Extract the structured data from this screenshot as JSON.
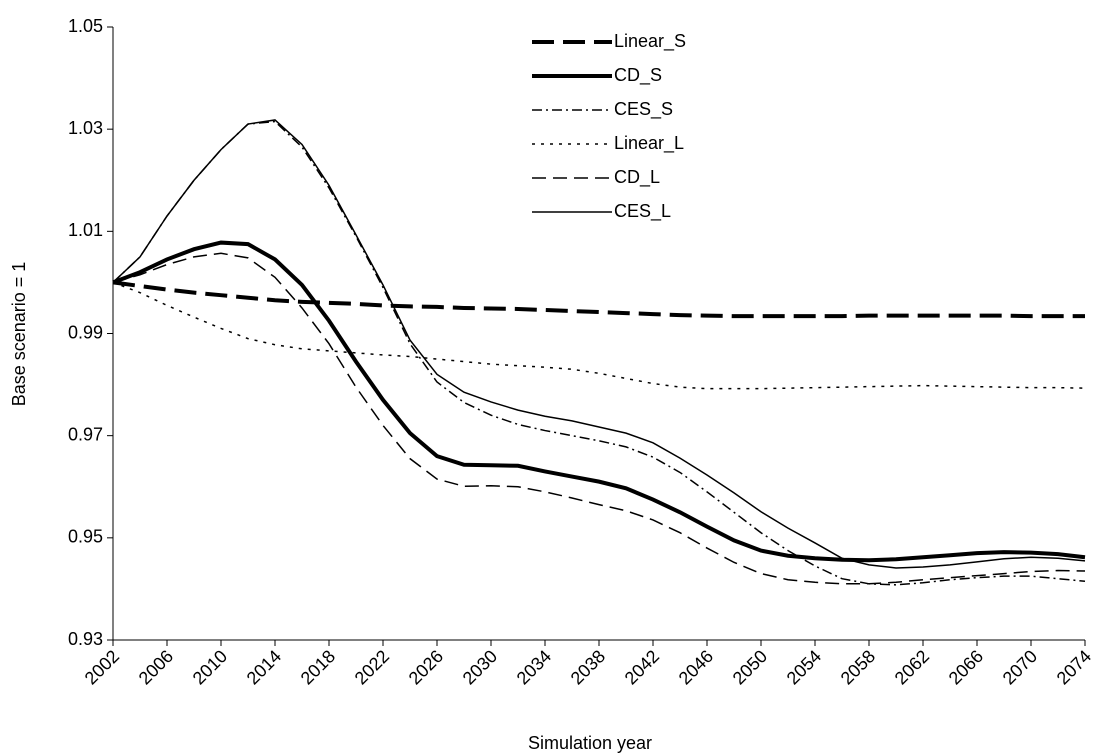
{
  "chart_data": {
    "type": "line",
    "xlabel": "Simulation year",
    "ylabel": "Base scenario = 1",
    "x": [
      2002,
      2004,
      2006,
      2008,
      2010,
      2012,
      2014,
      2016,
      2018,
      2020,
      2022,
      2024,
      2026,
      2028,
      2030,
      2032,
      2034,
      2036,
      2038,
      2040,
      2042,
      2044,
      2046,
      2048,
      2050,
      2052,
      2054,
      2056,
      2058,
      2060,
      2062,
      2064,
      2066,
      2068,
      2070,
      2072,
      2074
    ],
    "xlim": [
      2002,
      2074
    ],
    "xticks": [
      2002,
      2006,
      2010,
      2014,
      2018,
      2022,
      2026,
      2030,
      2034,
      2038,
      2042,
      2046,
      2050,
      2054,
      2058,
      2062,
      2066,
      2070,
      2074
    ],
    "ylim": [
      0.93,
      1.05
    ],
    "yticks": [
      0.93,
      0.95,
      0.97,
      0.99,
      1.01,
      1.03,
      1.05
    ],
    "grid": false,
    "legend": "upper center",
    "series": [
      {
        "name": "Linear_S",
        "color": "#000000",
        "width": 4,
        "dash": "22,9",
        "values": [
          1.0,
          0.9993,
          0.9986,
          0.998,
          0.9975,
          0.997,
          0.9965,
          0.9962,
          0.996,
          0.9958,
          0.9955,
          0.9953,
          0.9952,
          0.995,
          0.9949,
          0.9948,
          0.9946,
          0.9944,
          0.9942,
          0.994,
          0.9938,
          0.9936,
          0.9935,
          0.9934,
          0.9934,
          0.9934,
          0.9934,
          0.9934,
          0.9935,
          0.9935,
          0.9935,
          0.9935,
          0.9935,
          0.9935,
          0.9934,
          0.9934,
          0.9934
        ]
      },
      {
        "name": "CD_S",
        "color": "#000000",
        "width": 4,
        "dash": "none",
        "values": [
          1.0,
          1.002,
          1.0045,
          1.0065,
          1.0078,
          1.0075,
          1.0045,
          0.9995,
          0.9925,
          0.9845,
          0.977,
          0.9705,
          0.966,
          0.9643,
          0.9642,
          0.9641,
          0.963,
          0.962,
          0.961,
          0.9597,
          0.9575,
          0.955,
          0.9522,
          0.9495,
          0.9475,
          0.9465,
          0.946,
          0.9457,
          0.9456,
          0.9458,
          0.9462,
          0.9466,
          0.947,
          0.9472,
          0.9471,
          0.9468,
          0.9462
        ]
      },
      {
        "name": "CES_S",
        "color": "#000000",
        "width": 1.5,
        "dash": "10,4,2,4",
        "values": [
          1.0,
          1.005,
          1.013,
          1.02,
          1.026,
          1.031,
          1.0315,
          1.0265,
          1.0185,
          1.009,
          0.999,
          0.988,
          0.9805,
          0.9765,
          0.974,
          0.9722,
          0.971,
          0.97,
          0.969,
          0.9678,
          0.9658,
          0.9628,
          0.959,
          0.955,
          0.951,
          0.9475,
          0.9445,
          0.942,
          0.941,
          0.9408,
          0.9412,
          0.9418,
          0.9422,
          0.9425,
          0.9425,
          0.942,
          0.9415
        ]
      },
      {
        "name": "Linear_L",
        "color": "#000000",
        "width": 1.5,
        "dash": "3,6",
        "values": [
          1.0,
          0.998,
          0.9955,
          0.9932,
          0.991,
          0.989,
          0.9878,
          0.987,
          0.9866,
          0.9862,
          0.9858,
          0.9855,
          0.985,
          0.9845,
          0.984,
          0.9837,
          0.9834,
          0.983,
          0.9822,
          0.9812,
          0.9802,
          0.9795,
          0.9792,
          0.9792,
          0.9792,
          0.9793,
          0.9794,
          0.9795,
          0.9796,
          0.9797,
          0.9798,
          0.9797,
          0.9796,
          0.9795,
          0.9794,
          0.9794,
          0.9793
        ]
      },
      {
        "name": "CD_L",
        "color": "#000000",
        "width": 1.5,
        "dash": "14,7",
        "values": [
          1.0,
          1.0015,
          1.0035,
          1.005,
          1.0057,
          1.0048,
          1.001,
          0.995,
          0.988,
          0.9795,
          0.972,
          0.9655,
          0.9615,
          0.9601,
          0.9602,
          0.96,
          0.959,
          0.9578,
          0.9565,
          0.9553,
          0.9535,
          0.951,
          0.948,
          0.9452,
          0.943,
          0.9418,
          0.9413,
          0.941,
          0.941,
          0.9413,
          0.9418,
          0.9422,
          0.9426,
          0.943,
          0.9434,
          0.9436,
          0.9435
        ]
      },
      {
        "name": "CES_L",
        "color": "#000000",
        "width": 1.5,
        "dash": "none",
        "values": [
          1.0,
          1.005,
          1.013,
          1.02,
          1.026,
          1.031,
          1.0318,
          1.027,
          1.019,
          1.0093,
          0.9995,
          0.9887,
          0.982,
          0.9785,
          0.9766,
          0.975,
          0.9738,
          0.9729,
          0.9717,
          0.9705,
          0.9686,
          0.9656,
          0.9623,
          0.9588,
          0.9551,
          0.9519,
          0.949,
          0.946,
          0.9447,
          0.9441,
          0.9443,
          0.9447,
          0.9453,
          0.9459,
          0.9462,
          0.946,
          0.9455
        ]
      }
    ]
  }
}
